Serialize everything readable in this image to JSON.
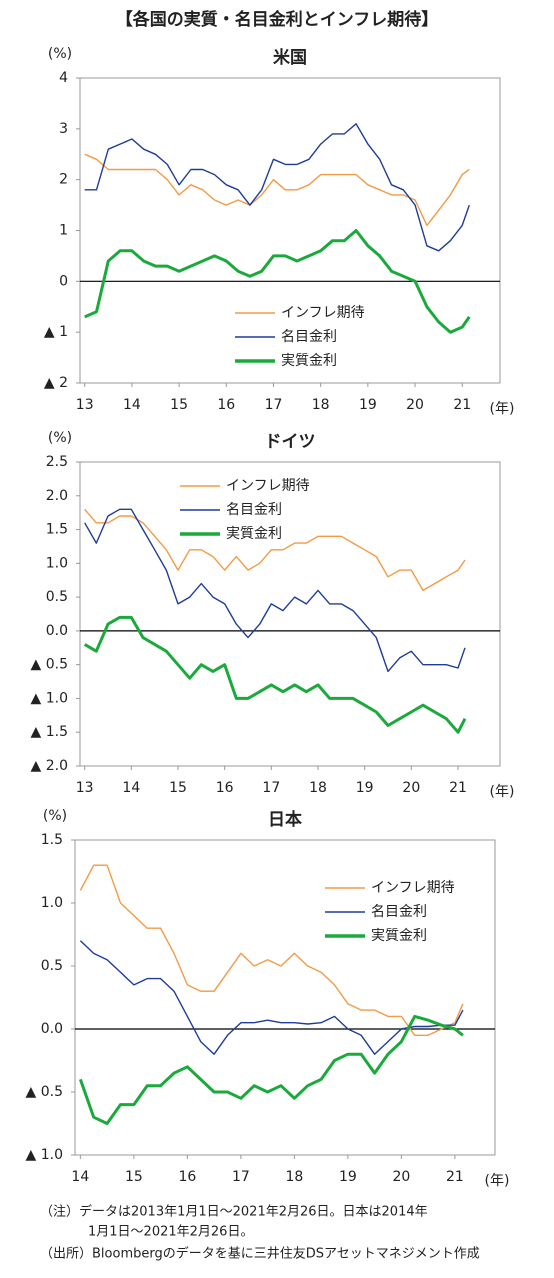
{
  "title": "【各国の実質・名目金利とインフレ期待】",
  "notes": [
    "（注）データは2013年1月1日～2021年2月26日。日本は2014年",
    "1月1日～2021年2月26日。",
    "（出所）Bloombergのデータを基に三井住友DSアセットマネジメント作成"
  ],
  "chart_data": [
    {
      "type": "line",
      "title": "米国",
      "y_label": "(%)",
      "x_label": "(年)",
      "legend": "lower center",
      "x": [
        13,
        13.25,
        13.5,
        13.75,
        14,
        14.25,
        14.5,
        14.75,
        15,
        15.25,
        15.5,
        15.75,
        16,
        16.25,
        16.5,
        16.75,
        17,
        17.25,
        17.5,
        17.75,
        18,
        18.25,
        18.5,
        18.75,
        19,
        19.25,
        19.5,
        19.75,
        20,
        20.25,
        20.5,
        20.75,
        21,
        21.15
      ],
      "xlim": [
        12.9,
        21.8
      ],
      "xticks": [
        13,
        14,
        15,
        16,
        17,
        18,
        19,
        20,
        21
      ],
      "ylim": [
        -2,
        4
      ],
      "yticks": [
        4,
        3,
        2,
        1,
        0,
        {
          "value": -1,
          "label": "▲ 1"
        },
        {
          "value": -2,
          "label": "▲ 2"
        }
      ],
      "series": [
        {
          "name": "インフレ期待",
          "color": "#f39a45",
          "values": [
            2.5,
            2.4,
            2.2,
            2.2,
            2.2,
            2.2,
            2.2,
            2.0,
            1.7,
            1.9,
            1.8,
            1.6,
            1.5,
            1.6,
            1.5,
            1.7,
            2.0,
            1.8,
            1.8,
            1.9,
            2.1,
            2.1,
            2.1,
            2.1,
            1.9,
            1.8,
            1.7,
            1.7,
            1.6,
            1.1,
            1.4,
            1.7,
            2.1,
            2.2
          ]
        },
        {
          "name": "名目金利",
          "color": "#1f3c99",
          "values": [
            1.8,
            1.8,
            2.6,
            2.7,
            2.8,
            2.6,
            2.5,
            2.3,
            1.9,
            2.2,
            2.2,
            2.1,
            1.9,
            1.8,
            1.5,
            1.8,
            2.4,
            2.3,
            2.3,
            2.4,
            2.7,
            2.9,
            2.9,
            3.1,
            2.7,
            2.4,
            1.9,
            1.8,
            1.5,
            0.7,
            0.6,
            0.8,
            1.1,
            1.5
          ]
        },
        {
          "name": "実質金利",
          "color": "#1aaa3c",
          "values": [
            -0.7,
            -0.6,
            0.4,
            0.6,
            0.6,
            0.4,
            0.3,
            0.3,
            0.2,
            0.3,
            0.4,
            0.5,
            0.4,
            0.2,
            0.1,
            0.2,
            0.5,
            0.5,
            0.4,
            0.5,
            0.6,
            0.8,
            0.8,
            1.0,
            0.7,
            0.5,
            0.2,
            0.1,
            0.0,
            -0.5,
            -0.8,
            -1.0,
            -0.9,
            -0.7
          ]
        }
      ]
    },
    {
      "type": "line",
      "title": "ドイツ",
      "y_label": "(%)",
      "x_label": "(年)",
      "legend": "upper center",
      "x": [
        13,
        13.25,
        13.5,
        13.75,
        14,
        14.25,
        14.5,
        14.75,
        15,
        15.25,
        15.5,
        15.75,
        16,
        16.25,
        16.5,
        16.75,
        17,
        17.25,
        17.5,
        17.75,
        18,
        18.25,
        18.5,
        18.75,
        19,
        19.25,
        19.5,
        19.75,
        20,
        20.25,
        20.5,
        20.75,
        21,
        21.15
      ],
      "xlim": [
        12.9,
        21.9
      ],
      "xticks": [
        13,
        14,
        15,
        16,
        17,
        18,
        19,
        20,
        21
      ],
      "ylim": [
        -2,
        2.5
      ],
      "yticks": [
        2.5,
        {
          "value": 2,
          "label": "2.0"
        },
        1.5,
        {
          "value": 1,
          "label": "1.0"
        },
        0.5,
        {
          "value": 0,
          "label": "0.0"
        },
        {
          "value": -0.5,
          "label": "▲ 0.5"
        },
        {
          "value": -1,
          "label": "▲ 1.0"
        },
        {
          "value": -1.5,
          "label": "▲ 1.5"
        },
        {
          "value": -2,
          "label": "▲ 2.0"
        }
      ],
      "series": [
        {
          "name": "インフレ期待",
          "color": "#f39a45",
          "values": [
            1.8,
            1.6,
            1.6,
            1.7,
            1.7,
            1.6,
            1.4,
            1.2,
            0.9,
            1.2,
            1.2,
            1.1,
            0.9,
            1.1,
            0.9,
            1.0,
            1.2,
            1.2,
            1.3,
            1.3,
            1.4,
            1.4,
            1.4,
            1.3,
            1.2,
            1.1,
            0.8,
            0.9,
            0.9,
            0.6,
            0.7,
            0.8,
            0.9,
            1.05
          ]
        },
        {
          "name": "名目金利",
          "color": "#1f3c99",
          "values": [
            1.6,
            1.3,
            1.7,
            1.8,
            1.8,
            1.5,
            1.2,
            0.9,
            0.4,
            0.5,
            0.7,
            0.5,
            0.4,
            0.1,
            -0.1,
            0.1,
            0.4,
            0.3,
            0.5,
            0.4,
            0.6,
            0.4,
            0.4,
            0.3,
            0.1,
            -0.1,
            -0.6,
            -0.4,
            -0.3,
            -0.5,
            -0.5,
            -0.5,
            -0.55,
            -0.25
          ]
        },
        {
          "name": "実質金利",
          "color": "#1aaa3c",
          "values": [
            -0.2,
            -0.3,
            0.1,
            0.2,
            0.2,
            -0.1,
            -0.2,
            -0.3,
            -0.5,
            -0.7,
            -0.5,
            -0.6,
            -0.5,
            -1.0,
            -1.0,
            -0.9,
            -0.8,
            -0.9,
            -0.8,
            -0.9,
            -0.8,
            -1.0,
            -1.0,
            -1.0,
            -1.1,
            -1.2,
            -1.4,
            -1.3,
            -1.2,
            -1.1,
            -1.2,
            -1.3,
            -1.5,
            -1.3
          ]
        }
      ]
    },
    {
      "type": "line",
      "title": "日本",
      "y_label": "(%)",
      "x_label": "(年)",
      "legend": "upper right",
      "x": [
        14,
        14.25,
        14.5,
        14.75,
        15,
        15.25,
        15.5,
        15.75,
        16,
        16.25,
        16.5,
        16.75,
        17,
        17.25,
        17.5,
        17.75,
        18,
        18.25,
        18.5,
        18.75,
        19,
        19.25,
        19.5,
        19.75,
        20,
        20.25,
        20.5,
        20.75,
        21,
        21.15
      ],
      "xlim": [
        13.9,
        21.75
      ],
      "xticks": [
        14,
        15,
        16,
        17,
        18,
        19,
        20,
        21
      ],
      "ylim": [
        -1,
        1.5
      ],
      "yticks": [
        1.5,
        {
          "value": 1,
          "label": "1.0"
        },
        0.5,
        {
          "value": 0,
          "label": "0.0"
        },
        {
          "value": -0.5,
          "label": "▲ 0.5"
        },
        {
          "value": -1,
          "label": "▲ 1.0"
        }
      ],
      "series": [
        {
          "name": "インフレ期待",
          "color": "#f39a45",
          "values": [
            1.1,
            1.3,
            1.3,
            1.0,
            0.9,
            0.8,
            0.8,
            0.6,
            0.35,
            0.3,
            0.3,
            0.45,
            0.6,
            0.5,
            0.55,
            0.5,
            0.6,
            0.5,
            0.45,
            0.35,
            0.2,
            0.15,
            0.15,
            0.1,
            0.1,
            -0.05,
            -0.05,
            0.0,
            0.05,
            0.2
          ]
        },
        {
          "name": "名目金利",
          "color": "#1f3c99",
          "values": [
            0.7,
            0.6,
            0.55,
            0.45,
            0.35,
            0.4,
            0.4,
            0.3,
            0.1,
            -0.1,
            -0.2,
            -0.05,
            0.05,
            0.05,
            0.07,
            0.05,
            0.05,
            0.04,
            0.05,
            0.1,
            0.0,
            -0.05,
            -0.2,
            -0.1,
            0.0,
            0.02,
            0.02,
            0.03,
            0.03,
            0.15
          ]
        },
        {
          "name": "実質金利",
          "color": "#1aaa3c",
          "values": [
            -0.4,
            -0.7,
            -0.75,
            -0.6,
            -0.6,
            -0.45,
            -0.45,
            -0.35,
            -0.3,
            -0.4,
            -0.5,
            -0.5,
            -0.55,
            -0.45,
            -0.5,
            -0.45,
            -0.55,
            -0.45,
            -0.4,
            -0.25,
            -0.2,
            -0.2,
            -0.35,
            -0.2,
            -0.1,
            0.1,
            0.07,
            0.03,
            0.0,
            -0.05
          ]
        }
      ]
    }
  ]
}
